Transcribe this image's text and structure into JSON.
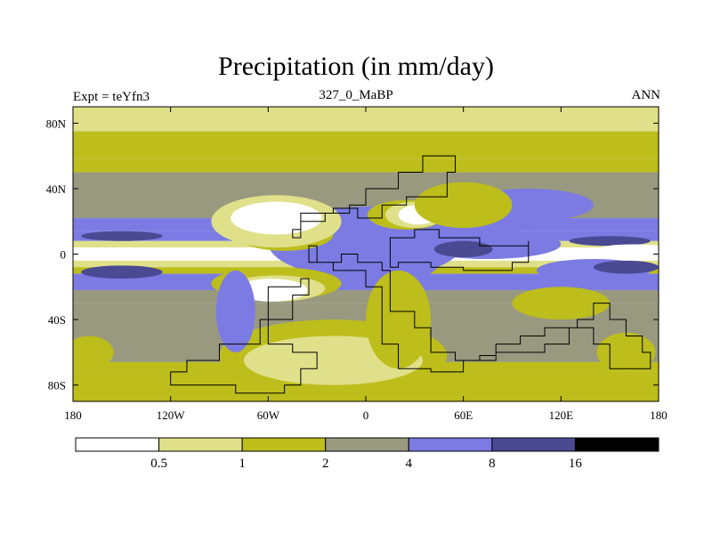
{
  "chart_data": {
    "type": "heatmap",
    "title": "Precipitation (in mm/day)",
    "left_label": "Expt = teYfn3",
    "center_label": "327_0_MaBP",
    "right_label": "ANN",
    "xlim": [
      -180,
      180
    ],
    "ylim": [
      -90,
      90
    ],
    "x_ticks": [
      {
        "value": -180,
        "label": "180"
      },
      {
        "value": -120,
        "label": "120W"
      },
      {
        "value": -60,
        "label": "60W"
      },
      {
        "value": 0,
        "label": "0"
      },
      {
        "value": 60,
        "label": "60E"
      },
      {
        "value": 120,
        "label": "120E"
      },
      {
        "value": 180,
        "label": "180"
      }
    ],
    "y_ticks": [
      {
        "value": 80,
        "label": "80N"
      },
      {
        "value": 40,
        "label": "40N"
      },
      {
        "value": 0,
        "label": "0"
      },
      {
        "value": -40,
        "label": "40S"
      },
      {
        "value": -80,
        "label": "80S"
      }
    ],
    "colorbar": {
      "levels": [
        "0.5",
        "1",
        "2",
        "4",
        "8",
        "16"
      ],
      "colors": [
        "#ffffff",
        "#e0e08a",
        "#bdbd1c",
        "#999980",
        "#7b7be3",
        "#4a4a93",
        "#000000"
      ]
    },
    "zonal_bands": [
      {
        "lat": [
          75,
          90
        ],
        "level": 1
      },
      {
        "lat": [
          58,
          75
        ],
        "level": 2
      },
      {
        "lat": [
          50,
          58
        ],
        "level": 2
      },
      {
        "lat": [
          22,
          50
        ],
        "level": 3
      },
      {
        "lat": [
          14,
          22
        ],
        "level": 4
      },
      {
        "lat": [
          8,
          14
        ],
        "level": 4
      },
      {
        "lat": [
          4,
          8
        ],
        "level": 1
      },
      {
        "lat": [
          -4,
          4
        ],
        "level": 0
      },
      {
        "lat": [
          -8,
          -4
        ],
        "level": 1
      },
      {
        "lat": [
          -12,
          -8
        ],
        "level": 2
      },
      {
        "lat": [
          -22,
          -12
        ],
        "level": 4
      },
      {
        "lat": [
          -30,
          -22
        ],
        "level": 3
      },
      {
        "lat": [
          -66,
          -30
        ],
        "level": 3
      },
      {
        "lat": [
          -72,
          -66
        ],
        "level": 2
      },
      {
        "lat": [
          -90,
          -72
        ],
        "level": 2
      }
    ],
    "features": [
      {
        "shape": "ellipse",
        "lon": 0,
        "lat": 7,
        "rx": 60,
        "ry": 22,
        "level": 4
      },
      {
        "shape": "ellipse",
        "lon": 5,
        "lat": -5,
        "rx": 40,
        "ry": 14,
        "level": 4
      },
      {
        "shape": "ellipse",
        "lon": 75,
        "lat": 6,
        "rx": 45,
        "ry": 9,
        "level": 4
      },
      {
        "shape": "ellipse",
        "lon": 60,
        "lat": 3,
        "rx": 18,
        "ry": 5,
        "level": 5
      },
      {
        "shape": "ellipse",
        "lon": 100,
        "lat": 30,
        "rx": 40,
        "ry": 10,
        "level": 4
      },
      {
        "shape": "ellipse",
        "lon": -50,
        "lat": 12,
        "rx": 30,
        "ry": 10,
        "level": 2
      },
      {
        "shape": "ellipse",
        "lon": -55,
        "lat": 20,
        "rx": 40,
        "ry": 16,
        "level": 1
      },
      {
        "shape": "ellipse",
        "lon": -55,
        "lat": 22,
        "rx": 28,
        "ry": 10,
        "level": 0
      },
      {
        "shape": "ellipse",
        "lon": 25,
        "lat": 24,
        "rx": 24,
        "ry": 9,
        "level": 2
      },
      {
        "shape": "ellipse",
        "lon": 30,
        "lat": 24,
        "rx": 18,
        "ry": 8,
        "level": 1
      },
      {
        "shape": "ellipse",
        "lon": 32,
        "lat": 24,
        "rx": 12,
        "ry": 6,
        "level": 0
      },
      {
        "shape": "ellipse",
        "lon": -55,
        "lat": -18,
        "rx": 40,
        "ry": 10,
        "level": 2
      },
      {
        "shape": "ellipse",
        "lon": -55,
        "lat": -21,
        "rx": 30,
        "ry": 8,
        "level": 1
      },
      {
        "shape": "ellipse",
        "lon": -58,
        "lat": -22,
        "rx": 22,
        "ry": 7,
        "level": 0
      },
      {
        "shape": "ellipse",
        "lon": -20,
        "lat": -62,
        "rx": 70,
        "ry": 22,
        "level": 2
      },
      {
        "shape": "ellipse",
        "lon": -20,
        "lat": -65,
        "rx": 55,
        "ry": 15,
        "level": 1
      },
      {
        "shape": "ellipse",
        "lon": 20,
        "lat": -40,
        "rx": 20,
        "ry": 30,
        "level": 2
      },
      {
        "shape": "ellipse",
        "lon": 140,
        "lat": -10,
        "rx": 35,
        "ry": 7,
        "level": 4
      },
      {
        "shape": "ellipse",
        "lon": 160,
        "lat": -8,
        "rx": 20,
        "ry": 4,
        "level": 5
      },
      {
        "shape": "ellipse",
        "lon": -150,
        "lat": -11,
        "rx": 25,
        "ry": 4,
        "level": 5
      },
      {
        "shape": "ellipse",
        "lon": -150,
        "lat": 11,
        "rx": 25,
        "ry": 3,
        "level": 5
      },
      {
        "shape": "ellipse",
        "lon": 150,
        "lat": 8,
        "rx": 25,
        "ry": 3,
        "level": 5
      },
      {
        "shape": "ellipse",
        "lon": 120,
        "lat": -30,
        "rx": 30,
        "ry": 10,
        "level": 2
      },
      {
        "shape": "ellipse",
        "lon": 60,
        "lat": 30,
        "rx": 30,
        "ry": 14,
        "level": 2
      },
      {
        "shape": "ellipse",
        "lon": 165,
        "lat": 2,
        "rx": 25,
        "ry": 4,
        "level": 0
      },
      {
        "shape": "ellipse",
        "lon": -165,
        "lat": 0,
        "rx": 25,
        "ry": 3,
        "level": 0
      },
      {
        "shape": "ellipse",
        "lon": -80,
        "lat": -35,
        "rx": 12,
        "ry": 25,
        "level": 4
      },
      {
        "shape": "ellipse",
        "lon": 160,
        "lat": -60,
        "rx": 18,
        "ry": 12,
        "level": 2
      },
      {
        "shape": "ellipse",
        "lon": -170,
        "lat": -60,
        "rx": 15,
        "ry": 10,
        "level": 2
      }
    ],
    "continents": [
      [
        [
          -40,
          25
        ],
        [
          -20,
          28
        ],
        [
          -5,
          22
        ],
        [
          10,
          30
        ],
        [
          25,
          35
        ],
        [
          40,
          35
        ],
        [
          50,
          50
        ],
        [
          55,
          60
        ],
        [
          40,
          60
        ],
        [
          35,
          50
        ],
        [
          20,
          40
        ],
        [
          10,
          40
        ],
        [
          0,
          30
        ],
        [
          -10,
          25
        ],
        [
          -25,
          20
        ],
        [
          -35,
          20
        ],
        [
          -40,
          15
        ],
        [
          -45,
          10
        ],
        [
          -40,
          25
        ]
      ],
      [
        [
          -35,
          5
        ],
        [
          -30,
          -5
        ],
        [
          -15,
          0
        ],
        [
          -5,
          -5
        ],
        [
          10,
          -10
        ],
        [
          15,
          -20
        ],
        [
          15,
          -35
        ],
        [
          30,
          -45
        ],
        [
          40,
          -60
        ],
        [
          55,
          -65
        ],
        [
          70,
          -62
        ],
        [
          80,
          -55
        ],
        [
          95,
          -50
        ],
        [
          110,
          -45
        ],
        [
          130,
          -40
        ],
        [
          140,
          -30
        ],
        [
          150,
          -40
        ],
        [
          160,
          -50
        ],
        [
          170,
          -60
        ],
        [
          175,
          -70
        ],
        [
          165,
          -70
        ],
        [
          150,
          -55
        ],
        [
          140,
          -45
        ],
        [
          125,
          -55
        ],
        [
          110,
          -60
        ],
        [
          80,
          -65
        ],
        [
          60,
          -72
        ],
        [
          40,
          -70
        ],
        [
          20,
          -55
        ],
        [
          10,
          -40
        ],
        [
          10,
          -20
        ],
        [
          0,
          -10
        ],
        [
          -20,
          -5
        ],
        [
          -35,
          5
        ]
      ],
      [
        [
          15,
          10
        ],
        [
          30,
          15
        ],
        [
          45,
          10
        ],
        [
          70,
          5
        ],
        [
          100,
          8
        ],
        [
          100,
          -5
        ],
        [
          90,
          -10
        ],
        [
          60,
          -8
        ],
        [
          40,
          -5
        ],
        [
          20,
          -8
        ],
        [
          15,
          10
        ]
      ],
      [
        [
          -60,
          -20
        ],
        [
          -40,
          -15
        ],
        [
          -35,
          -25
        ],
        [
          -45,
          -40
        ],
        [
          -65,
          -55
        ],
        [
          -90,
          -65
        ],
        [
          -110,
          -72
        ],
        [
          -120,
          -80
        ],
        [
          -80,
          -85
        ],
        [
          -50,
          -80
        ],
        [
          -40,
          -70
        ],
        [
          -30,
          -60
        ],
        [
          -45,
          -55
        ],
        [
          -60,
          -45
        ],
        [
          -60,
          -35
        ],
        [
          -60,
          -20
        ]
      ]
    ]
  }
}
